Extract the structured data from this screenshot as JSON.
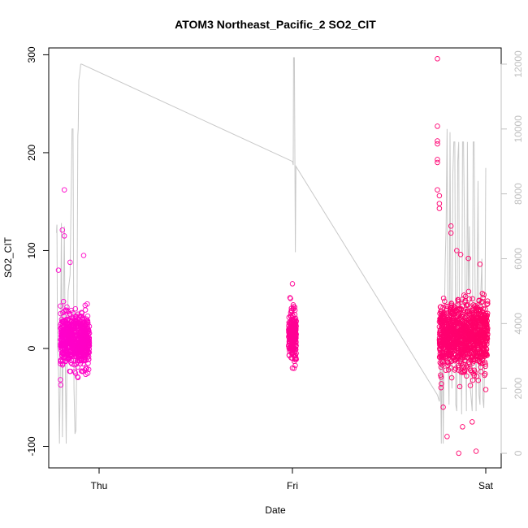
{
  "chart_data": {
    "type": "scatter",
    "title": "ATOM3 Northeast_Pacific_2 SO2_CIT",
    "xlabel": "Date",
    "ylabel": "SO2_CIT",
    "x_axis": {
      "type": "time",
      "ticks": [
        "Thu",
        "Fri",
        "Sat"
      ],
      "tick_values": [
        1.0,
        2.0,
        3.0
      ],
      "range": [
        0.737,
        3.0
      ]
    },
    "y_axis_left": {
      "range": [
        -122,
        307
      ],
      "ticks": [
        -100,
        0,
        100,
        200,
        300
      ],
      "tick_labels": [
        "-100",
        "0",
        "100",
        "200",
        "300"
      ]
    },
    "y_axis_right": {
      "range": [
        -450,
        12500
      ],
      "ticks": [
        0,
        2000,
        4000,
        6000,
        8000,
        10000,
        12000
      ],
      "tick_labels": [
        "0",
        "2000",
        "4000",
        "6000",
        "8000",
        "10000",
        "12000"
      ],
      "color": "#c0c0c0"
    },
    "grid": false,
    "series": [
      {
        "kind": "points",
        "marker": "open-circle",
        "color_start": "#ff00cc",
        "color_end": "#ff0066",
        "clusters": [
          {
            "x_start": 0.8,
            "x_end": 0.95,
            "n": 700,
            "mean": 8,
            "sd": 13
          },
          {
            "x_start": 1.98,
            "x_end": 2.02,
            "n": 260,
            "mean": 14,
            "sd": 12
          },
          {
            "x_start": 2.76,
            "x_end": 3.01,
            "n": 1100,
            "mean": 12,
            "sd": 17
          }
        ],
        "outliers": [
          {
            "x": 0.82,
            "y": 162
          },
          {
            "x": 0.81,
            "y": 121
          },
          {
            "x": 0.82,
            "y": 115
          },
          {
            "x": 0.79,
            "y": 80
          },
          {
            "x": 0.92,
            "y": 95
          },
          {
            "x": 0.85,
            "y": 88
          },
          {
            "x": 0.8,
            "y": -32
          },
          {
            "x": 2.0,
            "y": 66
          },
          {
            "x": 1.99,
            "y": 51
          },
          {
            "x": 2.0,
            "y": -20
          },
          {
            "x": 2.75,
            "y": 296
          },
          {
            "x": 2.75,
            "y": 227
          },
          {
            "x": 2.75,
            "y": 212
          },
          {
            "x": 2.75,
            "y": 209
          },
          {
            "x": 2.75,
            "y": 193
          },
          {
            "x": 2.75,
            "y": 190
          },
          {
            "x": 2.75,
            "y": 162
          },
          {
            "x": 2.76,
            "y": 156
          },
          {
            "x": 2.76,
            "y": 148
          },
          {
            "x": 2.76,
            "y": 143
          },
          {
            "x": 2.82,
            "y": 125
          },
          {
            "x": 2.82,
            "y": 118
          },
          {
            "x": 2.85,
            "y": 100
          },
          {
            "x": 2.87,
            "y": 96
          },
          {
            "x": 2.91,
            "y": 92
          },
          {
            "x": 2.97,
            "y": 86
          },
          {
            "x": 2.86,
            "y": -107
          },
          {
            "x": 2.95,
            "y": -105
          },
          {
            "x": 2.8,
            "y": -90
          },
          {
            "x": 2.88,
            "y": -80
          },
          {
            "x": 2.93,
            "y": -75
          },
          {
            "x": 2.78,
            "y": -60
          },
          {
            "x": 3.0,
            "y": -42
          }
        ]
      },
      {
        "kind": "line",
        "axis": "right",
        "color": "#c8c8c8",
        "points": [
          [
            0.78,
            6800
          ],
          [
            0.781,
            7000
          ],
          [
            0.782,
            7050
          ],
          [
            0.785,
            3200
          ],
          [
            0.79,
            2500
          ],
          [
            0.795,
            300
          ],
          [
            0.8,
            3000
          ],
          [
            0.805,
            7100
          ],
          [
            0.81,
            500
          ],
          [
            0.815,
            4200
          ],
          [
            0.82,
            7000
          ],
          [
            0.825,
            3000
          ],
          [
            0.83,
            300
          ],
          [
            0.835,
            3500
          ],
          [
            0.84,
            5000
          ],
          [
            0.85,
            5500
          ],
          [
            0.86,
            10000
          ],
          [
            0.865,
            10000
          ],
          [
            0.87,
            2000
          ],
          [
            0.875,
            600
          ],
          [
            0.88,
            700
          ],
          [
            0.885,
            3000
          ],
          [
            0.89,
            9800
          ],
          [
            0.892,
            10000
          ],
          [
            0.895,
            11500
          ],
          [
            0.9,
            11700
          ],
          [
            0.905,
            12000
          ],
          [
            0.91,
            12000
          ],
          [
            2.0,
            9000
          ],
          [
            2.004,
            8890
          ],
          [
            2.006,
            12200
          ],
          [
            2.01,
            12200
          ],
          [
            2.015,
            6200
          ],
          [
            2.018,
            8850
          ],
          [
            2.75,
            1800
          ],
          [
            2.76,
            1600
          ],
          [
            2.765,
            3000
          ],
          [
            2.77,
            300
          ],
          [
            2.775,
            4500
          ],
          [
            2.78,
            300
          ],
          [
            2.785,
            3500
          ],
          [
            2.79,
            5800
          ],
          [
            2.795,
            7000
          ],
          [
            2.8,
            10000
          ],
          [
            2.805,
            3000
          ],
          [
            2.81,
            1500
          ],
          [
            2.815,
            9900
          ],
          [
            2.82,
            4000
          ],
          [
            2.825,
            2000
          ],
          [
            2.83,
            8600
          ],
          [
            2.835,
            9600
          ],
          [
            2.84,
            9600
          ],
          [
            2.845,
            1500
          ],
          [
            2.85,
            1300
          ],
          [
            2.855,
            9000
          ],
          [
            2.86,
            9600
          ],
          [
            2.865,
            2000
          ],
          [
            2.87,
            4500
          ],
          [
            2.875,
            1200
          ],
          [
            2.88,
            9600
          ],
          [
            2.885,
            9600
          ],
          [
            2.89,
            7000
          ],
          [
            2.895,
            4000
          ],
          [
            2.9,
            1300
          ],
          [
            2.905,
            9600
          ],
          [
            2.91,
            5000
          ],
          [
            2.915,
            7000
          ],
          [
            2.92,
            2000
          ],
          [
            2.93,
            1300
          ],
          [
            2.935,
            9600
          ],
          [
            2.94,
            9600
          ],
          [
            2.945,
            5000
          ],
          [
            2.95,
            1300
          ],
          [
            2.955,
            5000
          ],
          [
            2.96,
            8400
          ],
          [
            2.965,
            1800
          ],
          [
            2.97,
            1500
          ],
          [
            2.975,
            5000
          ],
          [
            2.98,
            6000
          ],
          [
            2.985,
            1700
          ],
          [
            2.99,
            1400
          ],
          [
            2.995,
            3000
          ],
          [
            3.0,
            8800
          ]
        ]
      }
    ]
  }
}
